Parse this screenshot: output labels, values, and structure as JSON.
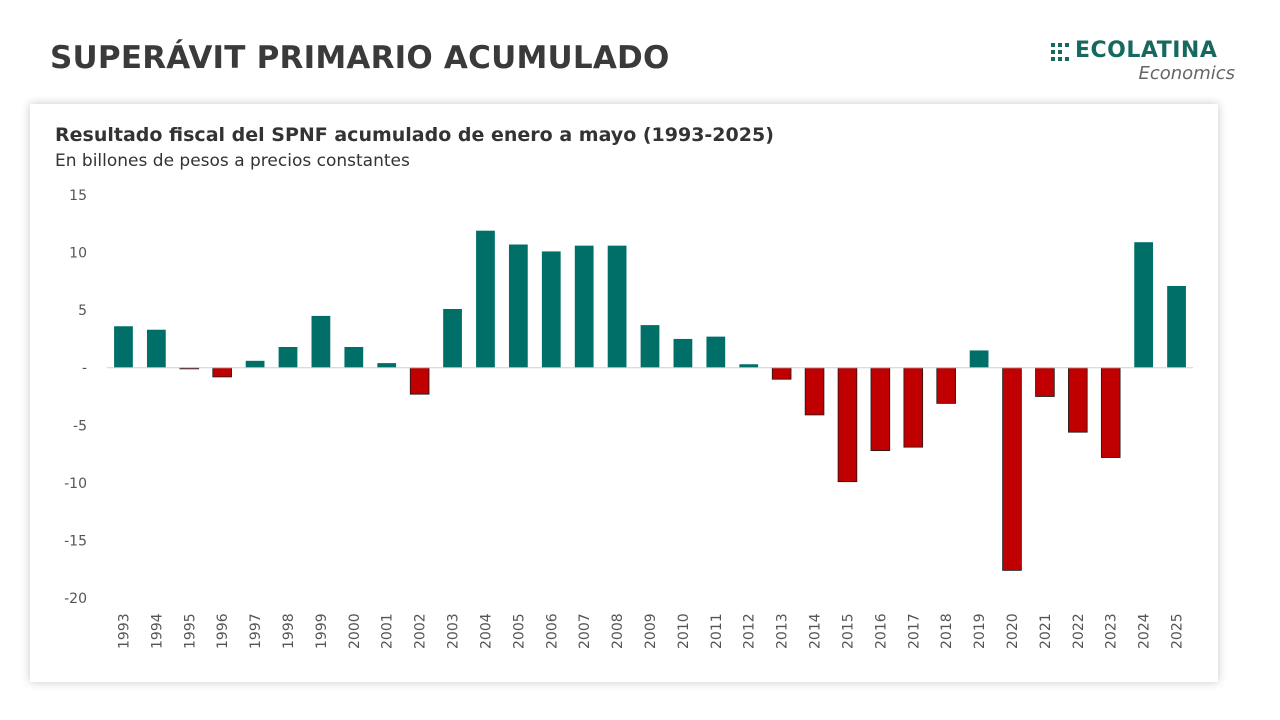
{
  "page": {
    "title": "SUPERÁVIT PRIMARIO ACUMULADO"
  },
  "logo": {
    "name": "ECOLATINA",
    "sub": "Economics",
    "color": "#17695f"
  },
  "colors": {
    "positive": "#006f68",
    "negative": "#c00000"
  },
  "chart_data": {
    "type": "bar",
    "title": "Resultado fiscal del SPNF acumulado de enero a mayo (1993-2025)",
    "subtitle": "En billones de pesos a precios constantes",
    "xlabel": "",
    "ylabel": "",
    "ylim": [
      -20,
      15
    ],
    "yticks": [
      15,
      10,
      5,
      0,
      -5,
      -10,
      -15,
      -20
    ],
    "ytick_labels": [
      "15",
      "10",
      "5",
      "-",
      "-5",
      "-10",
      "-15",
      "-20"
    ],
    "grid": false,
    "categories": [
      "1993",
      "1994",
      "1995",
      "1996",
      "1997",
      "1998",
      "1999",
      "2000",
      "2001",
      "2002",
      "2003",
      "2004",
      "2005",
      "2006",
      "2007",
      "2008",
      "2009",
      "2010",
      "2011",
      "2012",
      "2013",
      "2014",
      "2015",
      "2016",
      "2017",
      "2018",
      "2019",
      "2020",
      "2021",
      "2022",
      "2023",
      "2024",
      "2025"
    ],
    "values": [
      3.6,
      3.3,
      -0.1,
      -0.8,
      0.6,
      1.8,
      4.5,
      1.8,
      0.4,
      -2.3,
      5.1,
      11.9,
      10.7,
      10.1,
      10.6,
      10.6,
      3.7,
      2.5,
      2.7,
      0.3,
      -1.0,
      -4.1,
      -9.9,
      -7.2,
      -6.9,
      -3.1,
      1.5,
      -17.6,
      -2.5,
      -5.6,
      -7.8,
      10.9,
      7.1
    ]
  }
}
